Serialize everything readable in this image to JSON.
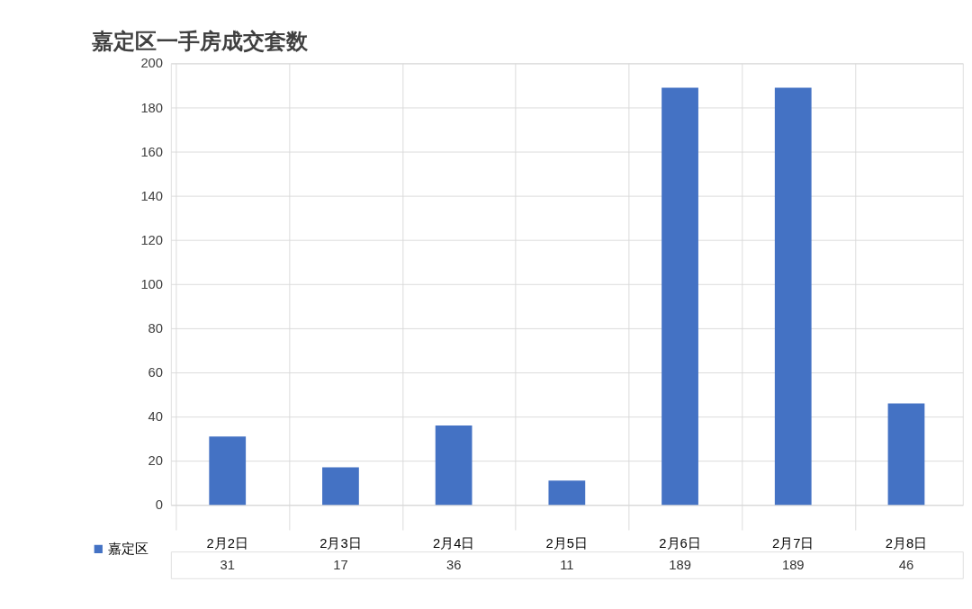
{
  "chart_data": {
    "type": "bar",
    "title": "嘉定区一手房成交套数",
    "categories": [
      "2月2日",
      "2月3日",
      "2月4日",
      "2月5日",
      "2月6日",
      "2月7日",
      "2月8日"
    ],
    "series": [
      {
        "name": "嘉定区",
        "color": "#4472c4",
        "values": [
          31,
          17,
          36,
          11,
          189,
          189,
          46
        ]
      }
    ],
    "ylim": [
      0,
      200
    ],
    "yticks": [
      0,
      20,
      40,
      60,
      80,
      100,
      120,
      140,
      160,
      180,
      200
    ],
    "grid": "y",
    "legend": "bottom left",
    "data_labels": true
  }
}
